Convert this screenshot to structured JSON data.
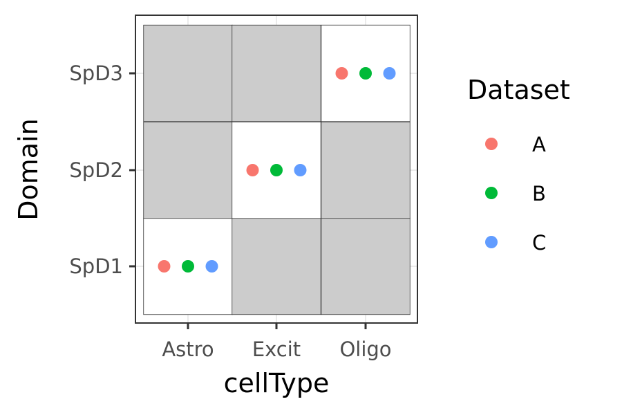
{
  "chart_data": {
    "type": "scatter",
    "x_categories": [
      "Astro",
      "Excit",
      "Oligo"
    ],
    "y_categories": [
      "SpD1",
      "SpD2",
      "SpD3"
    ],
    "xlabel": "cellType",
    "ylabel": "Domain",
    "grid": true,
    "legend": {
      "title": "Dataset",
      "placement": "right",
      "entries": [
        {
          "label": "A",
          "color": "#F8766D"
        },
        {
          "label": "B",
          "color": "#00BA38"
        },
        {
          "label": "C",
          "color": "#619CFF"
        }
      ]
    },
    "tiles": [
      {
        "x": "Astro",
        "y": "SpD1",
        "fill": "#ffffff"
      },
      {
        "x": "Excit",
        "y": "SpD1",
        "fill": "#cccccc"
      },
      {
        "x": "Oligo",
        "y": "SpD1",
        "fill": "#cccccc"
      },
      {
        "x": "Astro",
        "y": "SpD2",
        "fill": "#cccccc"
      },
      {
        "x": "Excit",
        "y": "SpD2",
        "fill": "#ffffff"
      },
      {
        "x": "Oligo",
        "y": "SpD2",
        "fill": "#cccccc"
      },
      {
        "x": "Astro",
        "y": "SpD3",
        "fill": "#cccccc"
      },
      {
        "x": "Excit",
        "y": "SpD3",
        "fill": "#cccccc"
      },
      {
        "x": "Oligo",
        "y": "SpD3",
        "fill": "#ffffff"
      }
    ],
    "points": [
      {
        "x": "Astro",
        "y": "SpD1",
        "dataset": "A"
      },
      {
        "x": "Astro",
        "y": "SpD1",
        "dataset": "B"
      },
      {
        "x": "Astro",
        "y": "SpD1",
        "dataset": "C"
      },
      {
        "x": "Excit",
        "y": "SpD2",
        "dataset": "A"
      },
      {
        "x": "Excit",
        "y": "SpD2",
        "dataset": "B"
      },
      {
        "x": "Excit",
        "y": "SpD2",
        "dataset": "C"
      },
      {
        "x": "Oligo",
        "y": "SpD3",
        "dataset": "A"
      },
      {
        "x": "Oligo",
        "y": "SpD3",
        "dataset": "B"
      },
      {
        "x": "Oligo",
        "y": "SpD3",
        "dataset": "C"
      }
    ]
  }
}
